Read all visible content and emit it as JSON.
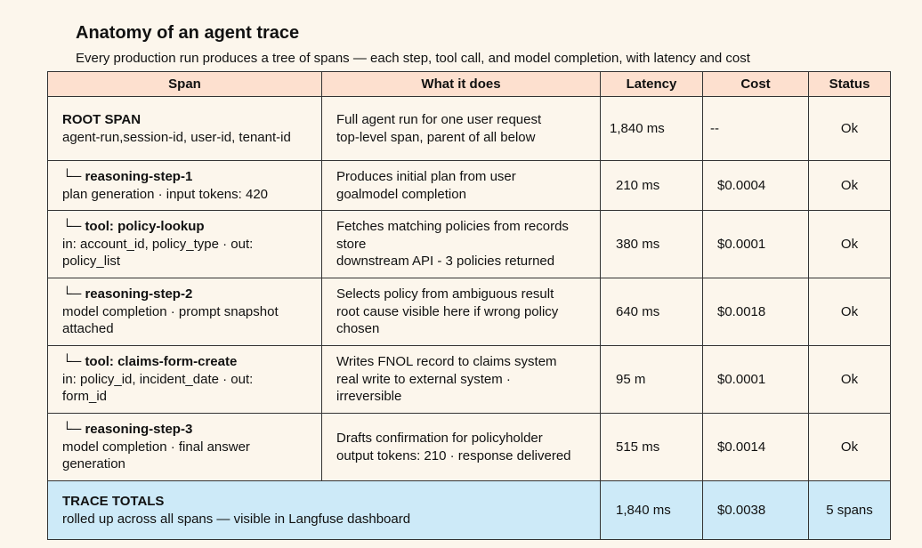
{
  "title": "Anatomy of an agent trace",
  "subtitle": "Every production run produces a tree of spans — each step, tool call, and model completion, with latency and cost",
  "table": {
    "headers": [
      "Span",
      "What it does",
      "Latency",
      "Cost",
      "Status"
    ],
    "branch_glyph": "└─",
    "rows": [
      {
        "name": "ROOT SPAN",
        "detail": [
          "agent-run,session-id, user-id, tenant-id"
        ],
        "what": [
          "Full agent run for one user request",
          "top-level span, parent of all below"
        ],
        "latency": "1,840 ms",
        "cost": "--",
        "status": "Ok"
      },
      {
        "name": "reasoning-step-1",
        "detail": [
          "plan generation · input tokens: 420"
        ],
        "what": [
          "Produces initial plan from user",
          "goalmodel completion"
        ],
        "latency": "210 ms",
        "cost": "$0.0004",
        "status": "Ok"
      },
      {
        "name": "tool: policy-lookup",
        "detail": [
          "in: account_id, policy_type · out:",
          "policy_list"
        ],
        "what": [
          "Fetches matching policies from records",
          "store",
          "downstream API - 3 policies returned"
        ],
        "latency": "380 ms",
        "cost": "$0.0001",
        "status": "Ok"
      },
      {
        "name": "reasoning-step-2",
        "detail": [
          "model completion · prompt snapshot",
          "attached"
        ],
        "what": [
          "Selects policy from ambiguous result",
          "root cause visible here if wrong policy",
          "chosen"
        ],
        "latency": "640 ms",
        "cost": "$0.0018",
        "status": "Ok"
      },
      {
        "name": "tool: claims-form-create",
        "detail": [
          "in: policy_id, incident_date · out:",
          "form_id"
        ],
        "what": [
          "Writes FNOL record to claims system",
          "real write to external system ·",
          "irreversible"
        ],
        "latency": "95 m",
        "cost": "$0.0001",
        "status": "Ok"
      },
      {
        "name": "reasoning-step-3",
        "detail": [
          "model completion · final answer",
          "generation"
        ],
        "what": [
          "Drafts confirmation for policyholder",
          "output tokens: 210 · response delivered"
        ],
        "latency": "515 ms",
        "cost": "$0.0014",
        "status": "Ok"
      }
    ],
    "totals": {
      "name": "TRACE TOTALS",
      "detail": "rolled up across all spans — visible in Langfuse dashboard",
      "latency": "1,840 ms",
      "cost": "$0.0038",
      "status": "5 spans"
    }
  },
  "colors": {
    "background": "#fcf6ec",
    "header_fill": "#fde0cf",
    "totals_fill": "#cdeaf8",
    "border": "#333333"
  }
}
